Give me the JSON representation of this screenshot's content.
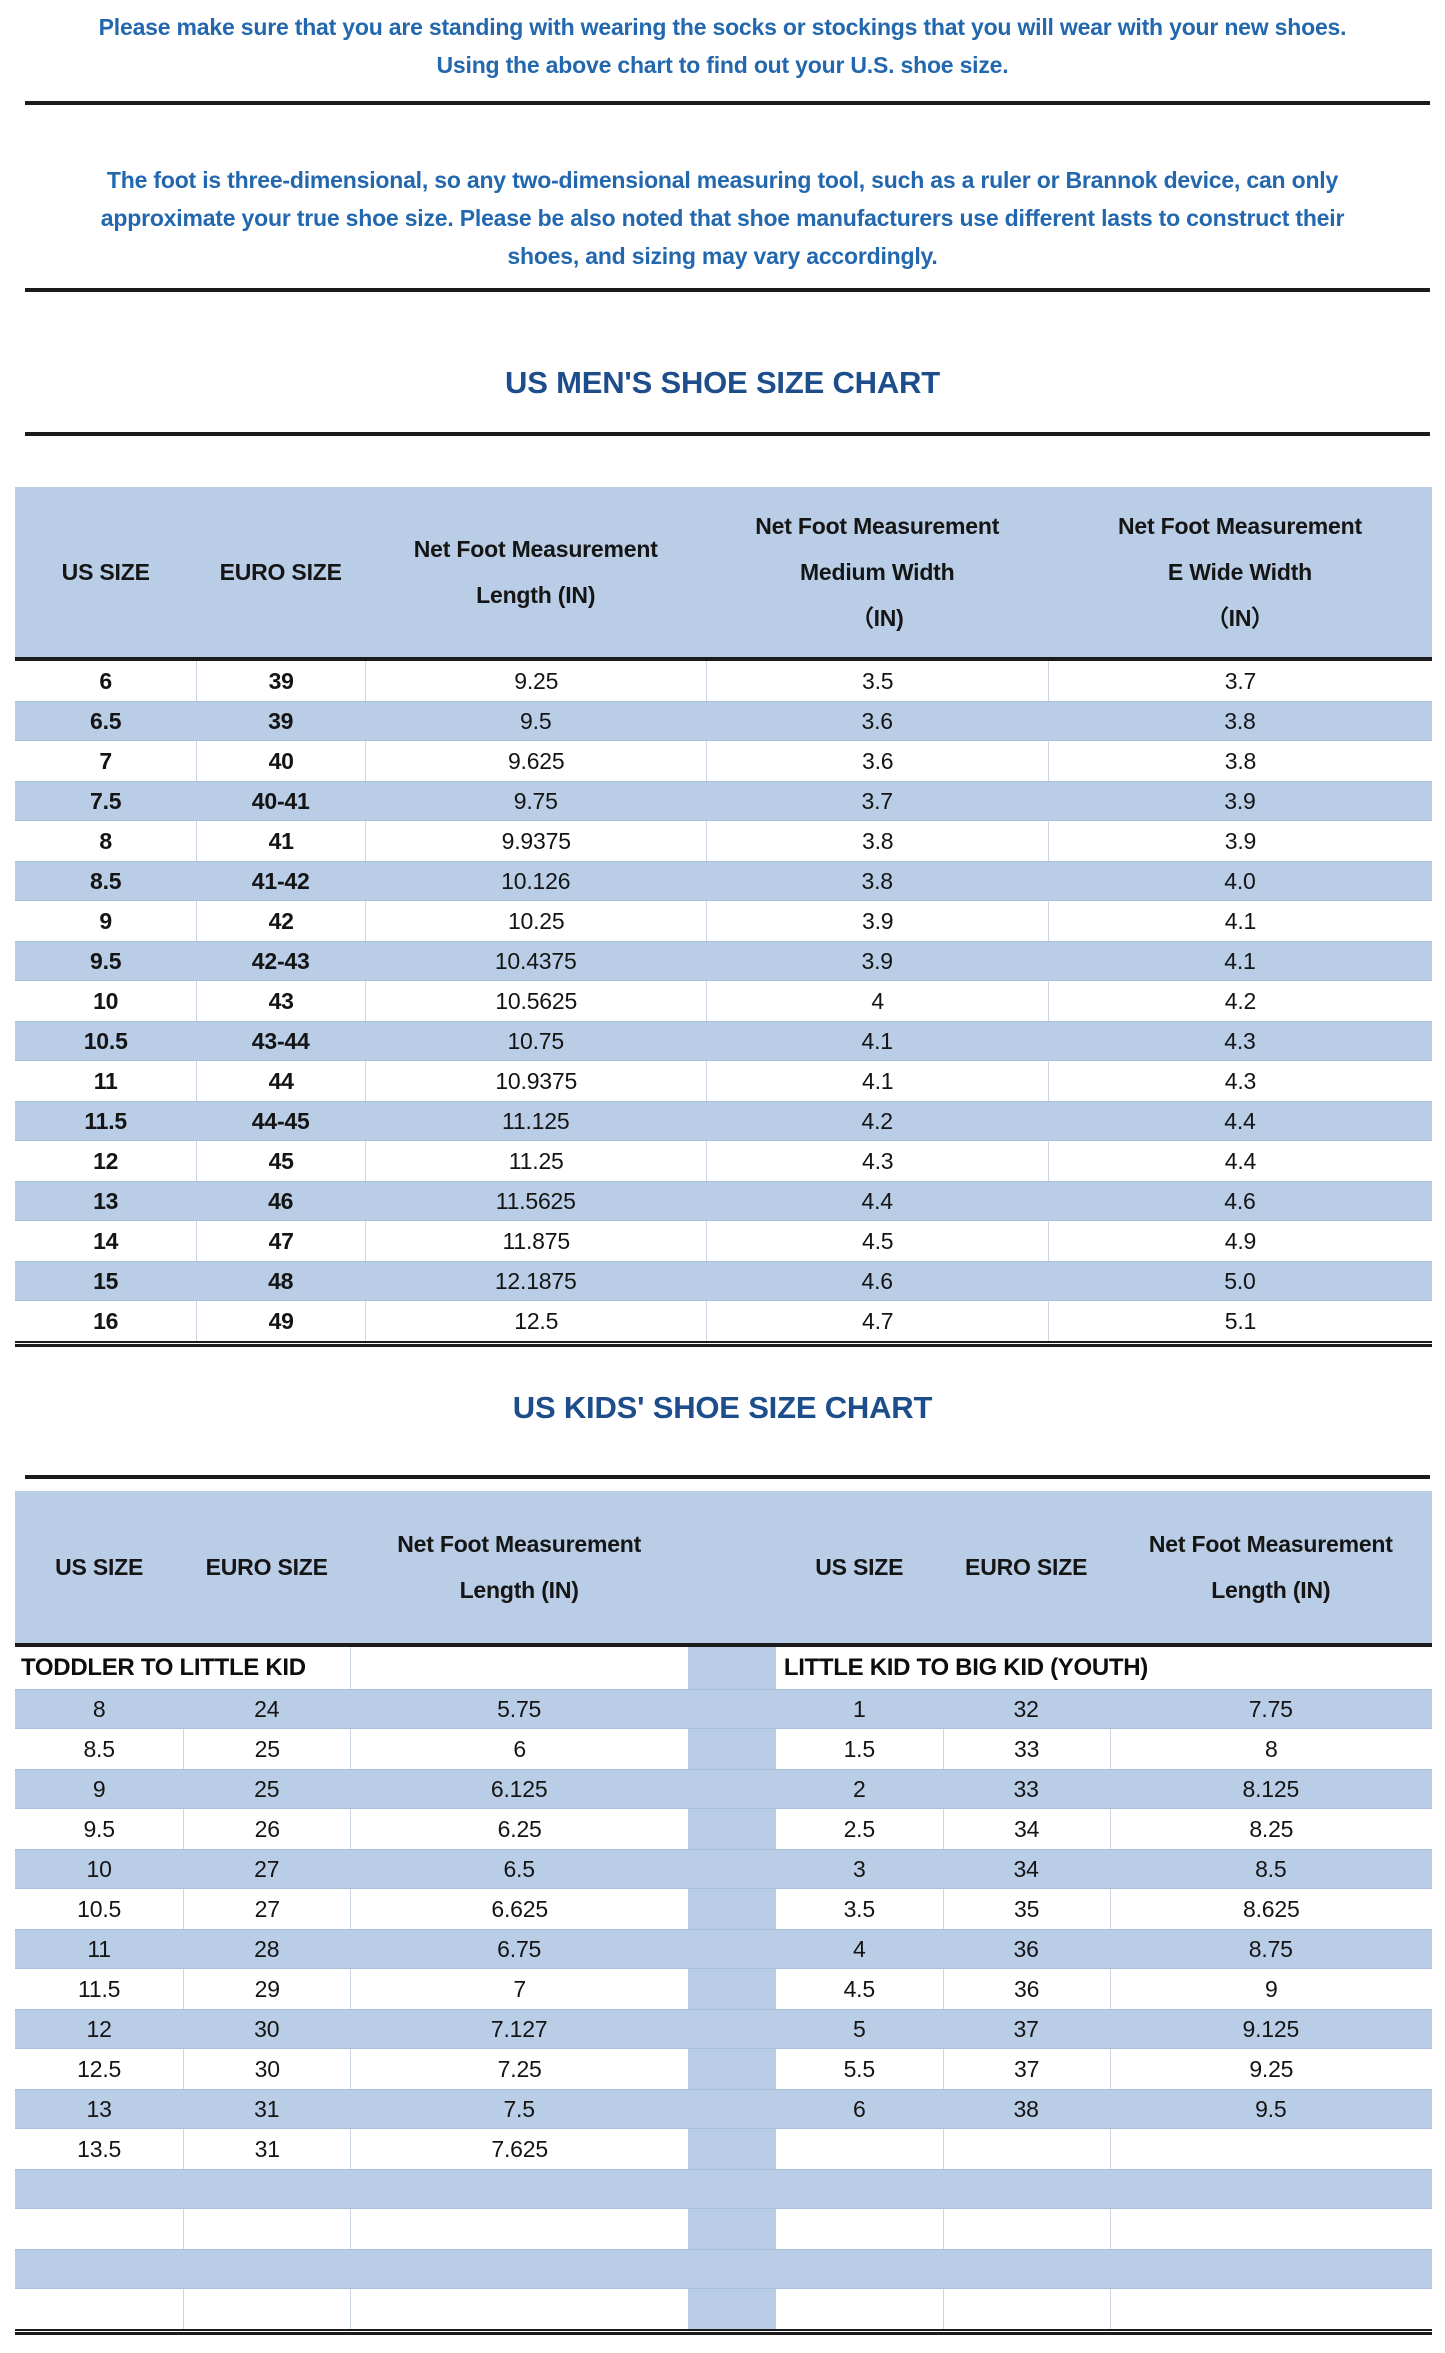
{
  "colors": {
    "row_blue": "#b9cde6",
    "band_blue": "#b9cde6",
    "divider": "#1b1b1b",
    "note_text": "#2368ae",
    "title_text": "#1e4d8c",
    "cell_border": "#ccd6e3",
    "blue_row_edge": "#a8c0dc"
  },
  "notes": {
    "note1_line1": "Please make sure that you are standing with wearing the socks or stockings that you will wear with your new shoes.",
    "note1_line2": "Using the above chart to find out your U.S. shoe size.",
    "note2_line1": "The foot is three-dimensional, so any two-dimensional measuring tool, such as a ruler or Brannok device, can only",
    "note2_line2": "approximate your true shoe size. Please be also noted that shoe manufacturers use different lasts to construct their",
    "note2_line3": "shoes, and sizing may vary accordingly."
  },
  "mens_chart": {
    "title": "US MEN'S SHOE SIZE CHART",
    "headers": [
      "US SIZE",
      "EURO SIZE",
      "Net Foot Measurement\nLength (IN)",
      "Net Foot Measurement\nMedium Width\n（IN)",
      "Net Foot Measurement\nE Wide Width\n（IN）"
    ],
    "rows": [
      [
        "6",
        "39",
        "9.25",
        "3.5",
        "3.7"
      ],
      [
        "6.5",
        "39",
        "9.5",
        "3.6",
        "3.8"
      ],
      [
        "7",
        "40",
        "9.625",
        "3.6",
        "3.8"
      ],
      [
        "7.5",
        "40-41",
        "9.75",
        "3.7",
        "3.9"
      ],
      [
        "8",
        "41",
        "9.9375",
        "3.8",
        "3.9"
      ],
      [
        "8.5",
        "41-42",
        "10.126",
        "3.8",
        "4.0"
      ],
      [
        "9",
        "42",
        "10.25",
        "3.9",
        "4.1"
      ],
      [
        "9.5",
        "42-43",
        "10.4375",
        "3.9",
        "4.1"
      ],
      [
        "10",
        "43",
        "10.5625",
        "4",
        "4.2"
      ],
      [
        "10.5",
        "43-44",
        "10.75",
        "4.1",
        "4.3"
      ],
      [
        "11",
        "44",
        "10.9375",
        "4.1",
        "4.3"
      ],
      [
        "11.5",
        "44-45",
        "11.125",
        "4.2",
        "4.4"
      ],
      [
        "12",
        "45",
        "11.25",
        "4.3",
        "4.4"
      ],
      [
        "13",
        "46",
        "11.5625",
        "4.4",
        "4.6"
      ],
      [
        "14",
        "47",
        "11.875",
        "4.5",
        "4.9"
      ],
      [
        "15",
        "48",
        "12.1875",
        "4.6",
        "5.0"
      ],
      [
        "16",
        "49",
        "12.5",
        "4.7",
        "5.1"
      ]
    ]
  },
  "kids_chart": {
    "title": "US KIDS' SHOE SIZE CHART",
    "headers_left": [
      "US SIZE",
      "EURO SIZE",
      "Net Foot Measurement\nLength (IN)"
    ],
    "headers_right": [
      "US SIZE",
      "EURO SIZE",
      "Net Foot Measurement\nLength (IN)"
    ],
    "section_left": "TODDLER TO LITTLE KID",
    "section_right": "LITTLE KID TO BIG KID (YOUTH)",
    "rows": [
      {
        "left": [
          "8",
          "24",
          "5.75"
        ],
        "right": [
          "1",
          "32",
          "7.75"
        ]
      },
      {
        "left": [
          "8.5",
          "25",
          "6"
        ],
        "right": [
          "1.5",
          "33",
          "8"
        ]
      },
      {
        "left": [
          "9",
          "25",
          "6.125"
        ],
        "right": [
          "2",
          "33",
          "8.125"
        ]
      },
      {
        "left": [
          "9.5",
          "26",
          "6.25"
        ],
        "right": [
          "2.5",
          "34",
          "8.25"
        ]
      },
      {
        "left": [
          "10",
          "27",
          "6.5"
        ],
        "right": [
          "3",
          "34",
          "8.5"
        ]
      },
      {
        "left": [
          "10.5",
          "27",
          "6.625"
        ],
        "right": [
          "3.5",
          "35",
          "8.625"
        ]
      },
      {
        "left": [
          "11",
          "28",
          "6.75"
        ],
        "right": [
          "4",
          "36",
          "8.75"
        ]
      },
      {
        "left": [
          "11.5",
          "29",
          "7"
        ],
        "right": [
          "4.5",
          "36",
          "9"
        ]
      },
      {
        "left": [
          "12",
          "30",
          "7.127"
        ],
        "right": [
          "5",
          "37",
          "9.125"
        ]
      },
      {
        "left": [
          "12.5",
          "30",
          "7.25"
        ],
        "right": [
          "5.5",
          "37",
          "9.25"
        ]
      },
      {
        "left": [
          "13",
          "31",
          "7.5"
        ],
        "right": [
          "6",
          "38",
          "9.5"
        ]
      },
      {
        "left": [
          "13.5",
          "31",
          "7.625"
        ],
        "right": [
          "",
          "",
          ""
        ]
      },
      {
        "left": [
          "",
          "",
          ""
        ],
        "right": [
          "",
          "",
          ""
        ]
      },
      {
        "left": [
          "",
          "",
          ""
        ],
        "right": [
          "",
          "",
          ""
        ]
      },
      {
        "left": [
          "",
          "",
          ""
        ],
        "right": [
          "",
          "",
          ""
        ]
      },
      {
        "left": [
          "",
          "",
          ""
        ],
        "right": [
          "",
          "",
          ""
        ]
      }
    ]
  }
}
